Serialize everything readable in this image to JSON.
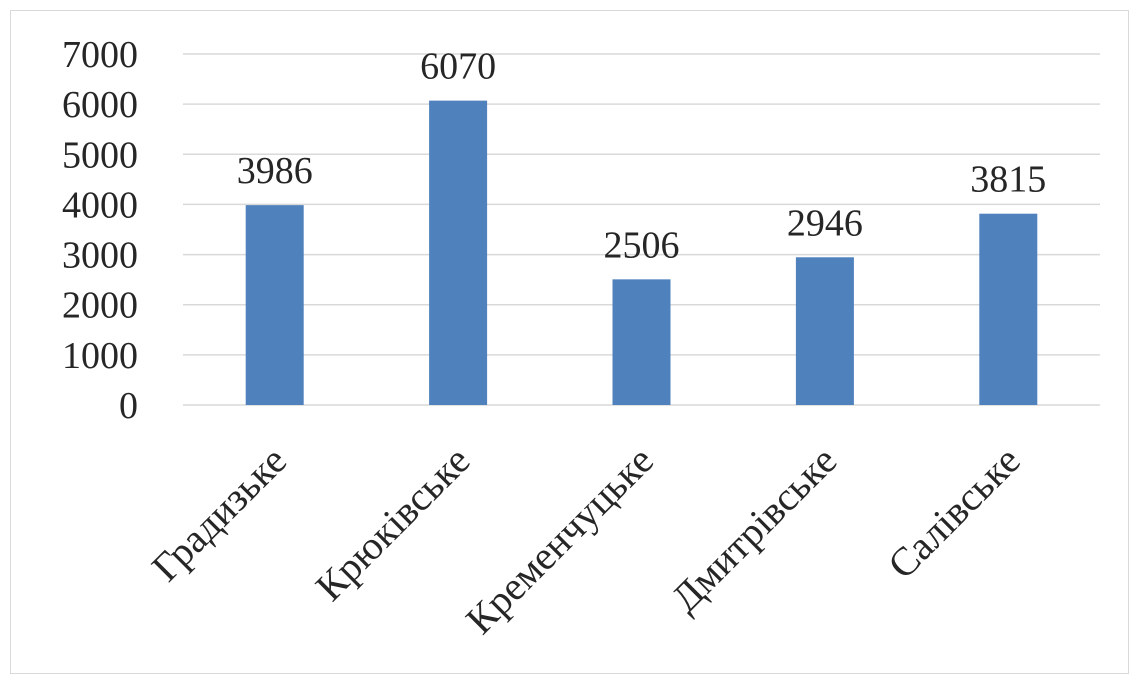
{
  "chart_data": {
    "type": "bar",
    "categories": [
      "Градизьке",
      "Крюківське",
      "Кременчуцьке",
      "Дмитрівське",
      "Салівське"
    ],
    "values": [
      3986,
      6070,
      2506,
      2946,
      3815
    ],
    "data_labels": [
      "3986",
      "6070",
      "2506",
      "2946",
      "3815"
    ],
    "title": "",
    "xlabel": "",
    "ylabel": "",
    "ylim": [
      0,
      7000
    ],
    "y_ticks": [
      "0",
      "1000",
      "2000",
      "3000",
      "4000",
      "5000",
      "6000",
      "7000"
    ],
    "y_tick_values": [
      0,
      1000,
      2000,
      3000,
      4000,
      5000,
      6000,
      7000
    ],
    "grid": true,
    "legend": "none",
    "colors": {
      "bar": "#4f81bd",
      "grid": "#d9d9d9",
      "text": "#262626",
      "border": "#d9d9d9"
    }
  }
}
